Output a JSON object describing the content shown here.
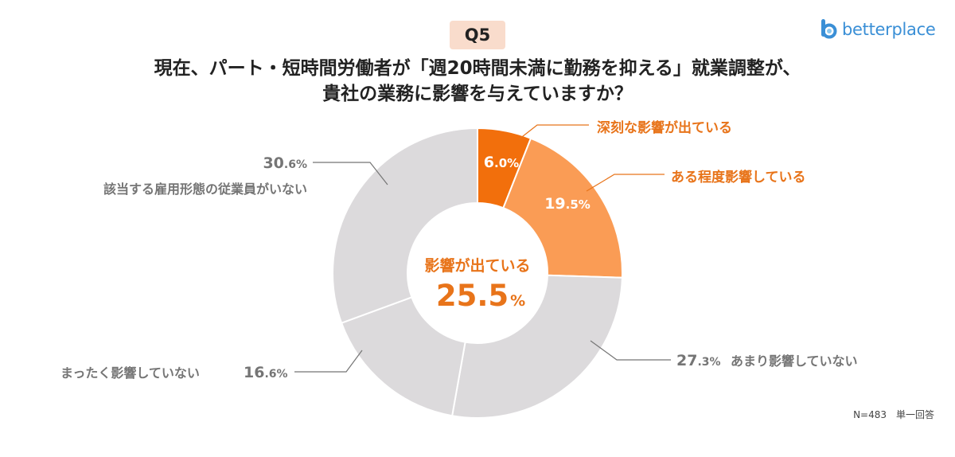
{
  "header": {
    "question_badge": "Q5",
    "title_line1": "現在、パート・短時間労働者が「週20時間未満に勤務を抑える」就業調整が、",
    "title_line2": "貴社の業務に影響を与えていますか？"
  },
  "brand": {
    "logo_text": "betterplace"
  },
  "center": {
    "label": "影響が出ている",
    "value_main": "25.5",
    "value_unit": "%"
  },
  "footnote": "N=483　単一回答",
  "colors": {
    "dark_orange": "#f26f0c",
    "light_orange": "#fa9c55",
    "gray": "#dcdadc",
    "orange_text": "#e8741a",
    "gray_text": "#757575"
  },
  "chart_data": {
    "type": "pie",
    "donut": true,
    "unit": "%",
    "slices": [
      {
        "label": "深刻な影響が出ている",
        "int": "6",
        "dec": ".0",
        "pct": "%",
        "value": 6.0
      },
      {
        "label": "ある程度影響している",
        "int": "19",
        "dec": ".5",
        "pct": "%",
        "value": 19.5
      },
      {
        "label": "あまり影響していない",
        "int": "27",
        "dec": ".3",
        "pct": "%",
        "value": 27.3
      },
      {
        "label": "まったく影響していない",
        "int": "16",
        "dec": ".6",
        "pct": "%",
        "value": 16.6
      },
      {
        "label": "該当する雇用形態の従業員がいない",
        "int": "30",
        "dec": ".6",
        "pct": "%",
        "value": 30.6
      }
    ]
  }
}
